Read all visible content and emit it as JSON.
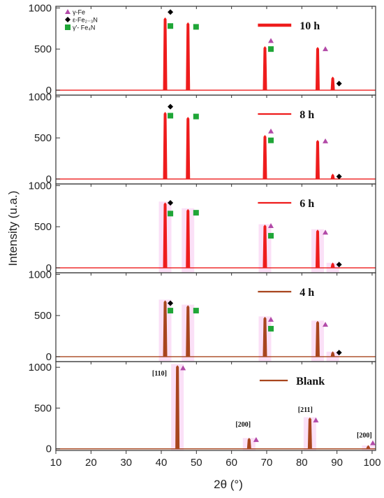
{
  "chart_data": {
    "type": "line",
    "xlabel": "2θ (°)",
    "ylabel": "Intensity (u.a.)",
    "xlim": [
      10,
      101
    ],
    "x_ticks": [
      "10",
      "20",
      "30",
      "40",
      "50",
      "60",
      "70",
      "80",
      "90",
      "100"
    ],
    "y_ticks": [
      "0",
      "500",
      "1000"
    ],
    "phase_key": [
      {
        "label": "γ-Fe",
        "marker": "triangle",
        "color": "#b24aa8"
      },
      {
        "label": "ε-Fe₂₋₃N",
        "marker": "diamond",
        "color": "#000000"
      },
      {
        "label": "γ'- Fe₄N",
        "marker": "square",
        "color": "#1fa637"
      }
    ],
    "panels": [
      {
        "name": "10 h",
        "color": "#ee1c1c",
        "ylim": [
          -60,
          1020
        ],
        "peaks": [
          {
            "x": 41.1,
            "y": 880
          },
          {
            "x": 47.6,
            "y": 820
          },
          {
            "x": 69.5,
            "y": 530
          },
          {
            "x": 84.5,
            "y": 520
          },
          {
            "x": 88.8,
            "y": 160
          }
        ],
        "markers": [
          {
            "type": "diamond",
            "x": 42.6,
            "y": 950
          },
          {
            "type": "square",
            "x": 42.6,
            "y": 780
          },
          {
            "type": "square",
            "x": 49.9,
            "y": 770
          },
          {
            "type": "triangle",
            "x": 71.2,
            "y": 600
          },
          {
            "type": "square",
            "x": 71.2,
            "y": 500
          },
          {
            "type": "triangle",
            "x": 86.7,
            "y": 500
          },
          {
            "type": "diamond",
            "x": 90.6,
            "y": 80
          }
        ]
      },
      {
        "name": "8 h",
        "color": "#ee1c1c",
        "ylim": [
          -60,
          1020
        ],
        "peaks": [
          {
            "x": 41.1,
            "y": 810
          },
          {
            "x": 47.6,
            "y": 750
          },
          {
            "x": 69.5,
            "y": 530
          },
          {
            "x": 84.5,
            "y": 470
          },
          {
            "x": 88.8,
            "y": 60
          }
        ],
        "markers": [
          {
            "type": "diamond",
            "x": 42.6,
            "y": 880
          },
          {
            "type": "square",
            "x": 42.6,
            "y": 770
          },
          {
            "type": "square",
            "x": 49.9,
            "y": 760
          },
          {
            "type": "triangle",
            "x": 71.2,
            "y": 580
          },
          {
            "type": "square",
            "x": 71.2,
            "y": 470
          },
          {
            "type": "triangle",
            "x": 86.7,
            "y": 460
          },
          {
            "type": "diamond",
            "x": 90.6,
            "y": 30
          }
        ]
      },
      {
        "name": "6 h",
        "color": "#ee1c1c",
        "ylim": [
          -60,
          1020
        ],
        "peaks": [
          {
            "x": 41.1,
            "y": 790
          },
          {
            "x": 47.6,
            "y": 710
          },
          {
            "x": 69.5,
            "y": 520
          },
          {
            "x": 84.5,
            "y": 460
          },
          {
            "x": 88.8,
            "y": 60
          }
        ],
        "markers": [
          {
            "type": "diamond",
            "x": 42.6,
            "y": 790
          },
          {
            "type": "square",
            "x": 42.6,
            "y": 660
          },
          {
            "type": "square",
            "x": 49.9,
            "y": 670
          },
          {
            "type": "triangle",
            "x": 71.2,
            "y": 510
          },
          {
            "type": "square",
            "x": 71.2,
            "y": 390
          },
          {
            "type": "triangle",
            "x": 86.7,
            "y": 430
          },
          {
            "type": "diamond",
            "x": 90.6,
            "y": 40
          }
        ]
      },
      {
        "name": "4 h",
        "color": "#a8451e",
        "ylim": [
          -60,
          1020
        ],
        "peaks": [
          {
            "x": 41.1,
            "y": 680
          },
          {
            "x": 47.6,
            "y": 620
          },
          {
            "x": 69.5,
            "y": 480
          },
          {
            "x": 84.5,
            "y": 430
          },
          {
            "x": 88.8,
            "y": 60
          }
        ],
        "markers": [
          {
            "type": "diamond",
            "x": 42.6,
            "y": 650
          },
          {
            "type": "square",
            "x": 42.6,
            "y": 560
          },
          {
            "type": "square",
            "x": 49.9,
            "y": 560
          },
          {
            "type": "triangle",
            "x": 71.2,
            "y": 450
          },
          {
            "type": "square",
            "x": 71.2,
            "y": 340
          },
          {
            "type": "triangle",
            "x": 86.7,
            "y": 390
          },
          {
            "type": "diamond",
            "x": 90.6,
            "y": 50
          }
        ]
      },
      {
        "name": "Blank",
        "color": "#a8451e",
        "ylim": [
          -20,
          1070
        ],
        "peaks": [
          {
            "x": 44.6,
            "y": 1020
          },
          {
            "x": 65.0,
            "y": 130
          },
          {
            "x": 82.3,
            "y": 380
          },
          {
            "x": 98.9,
            "y": 40
          }
        ],
        "markers": [
          {
            "type": "triangle",
            "x": 46.2,
            "y": 990
          },
          {
            "type": "triangle",
            "x": 67.0,
            "y": 110
          },
          {
            "type": "triangle",
            "x": 84.0,
            "y": 350
          },
          {
            "type": "triangle",
            "x": 100.2,
            "y": 70
          }
        ],
        "peak_labels": [
          {
            "text": "[110]",
            "x": 39.5,
            "y": 900
          },
          {
            "text": "[200]",
            "x": 63.3,
            "y": 270
          },
          {
            "text": "[211]",
            "x": 81.0,
            "y": 450
          },
          {
            "text": "[200]",
            "x": 97.8,
            "y": 140
          }
        ]
      }
    ]
  }
}
